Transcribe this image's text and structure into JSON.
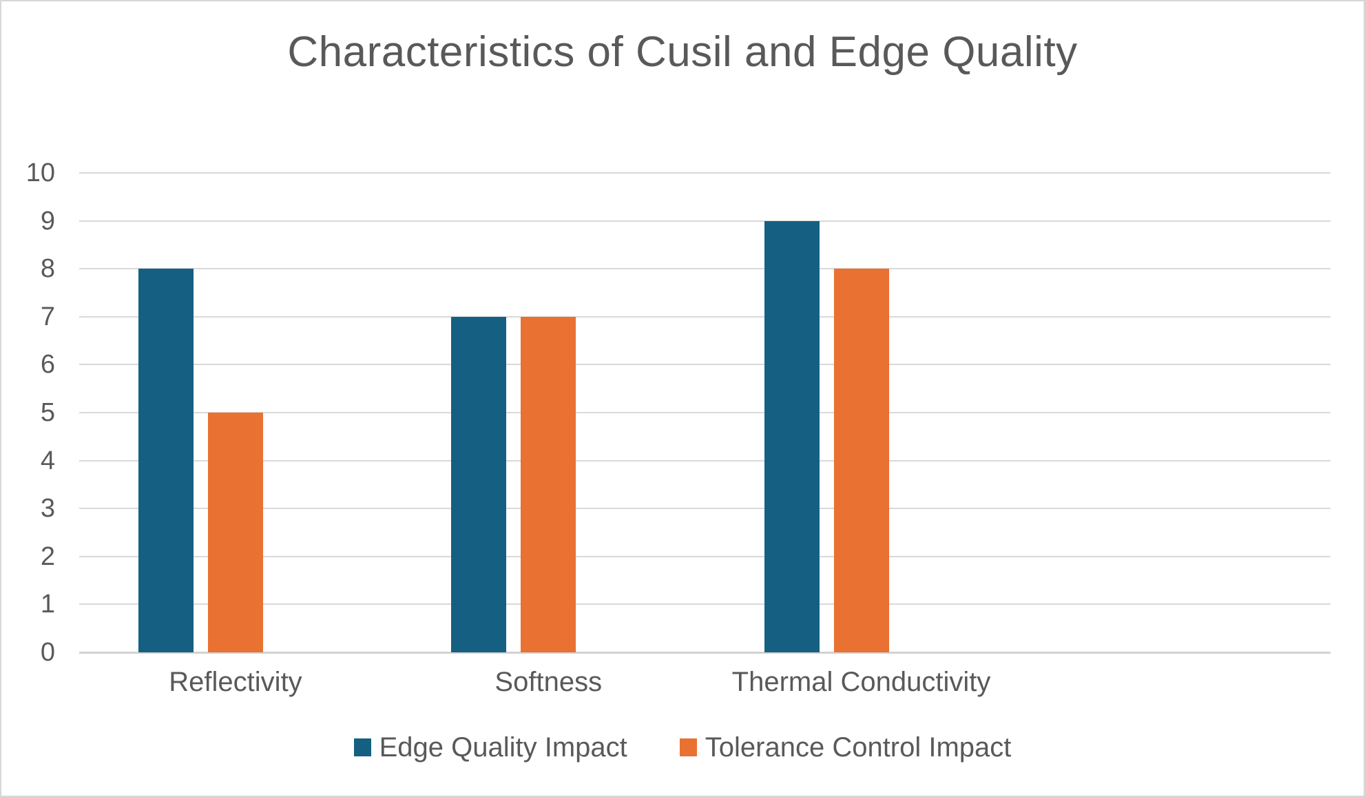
{
  "frame": {
    "background": "#ffffff",
    "border_color": "#d7d7d7",
    "text_color": "#595959",
    "gridline_color": "#d9d9d9"
  },
  "chart_data": {
    "type": "bar",
    "title": "Characteristics of Cusil and Edge Quality",
    "categories": [
      "Reflectivity",
      "Softness",
      "Thermal Conductivity"
    ],
    "series": [
      {
        "name": "Edge Quality Impact",
        "color": "#156082",
        "values": [
          8,
          7,
          9
        ]
      },
      {
        "name": "Tolerance Control Impact",
        "color": "#E97132",
        "values": [
          5,
          7,
          8
        ]
      }
    ],
    "xlabel": "",
    "ylabel": "",
    "ylim": [
      0,
      10
    ],
    "yticks": [
      0,
      1,
      2,
      3,
      4,
      5,
      6,
      7,
      8,
      9,
      10
    ],
    "grid": "horizontal",
    "legend_position": "bottom"
  }
}
